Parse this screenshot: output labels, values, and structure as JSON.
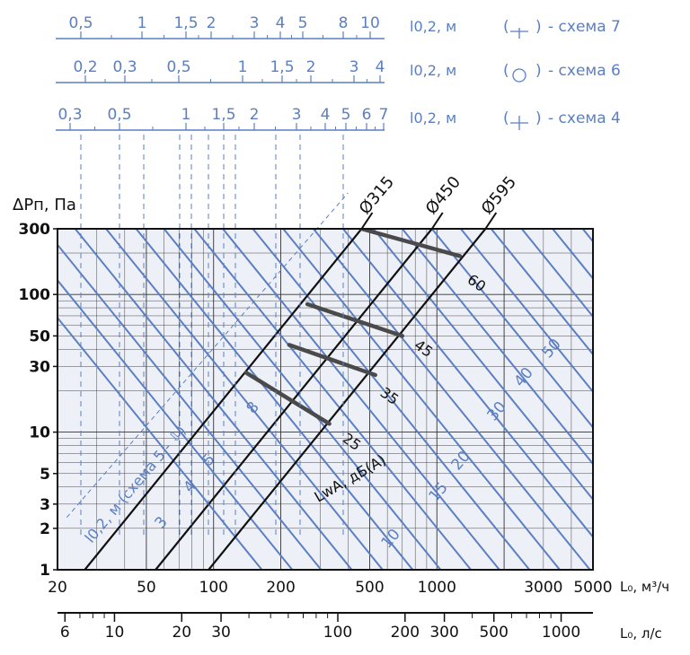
{
  "chart_data": {
    "type": "line",
    "title": "",
    "colors": {
      "blue": "#5b7fc2",
      "black": "#111111",
      "plot_bg": "#eef0f8",
      "grid": "#333333"
    },
    "x_axis_top": {
      "label": "L₀, м³/ч",
      "scale": "log",
      "range": [
        20,
        5000
      ],
      "ticks": [
        20,
        50,
        100,
        200,
        500,
        1000,
        3000,
        5000
      ],
      "tick_labels": [
        "20",
        "50",
        "100",
        "200",
        "500",
        "1000",
        "3000",
        "5000"
      ]
    },
    "x_axis_bottom": {
      "label": "L₀, л/с",
      "scale": "log",
      "ticks": [
        6,
        10,
        20,
        30,
        100,
        200,
        300,
        500,
        1000
      ],
      "tick_labels": [
        "6",
        "10",
        "20",
        "30",
        "100",
        "200",
        "300",
        "500",
        "1000"
      ]
    },
    "y_axis": {
      "label": "ΔPп, Па",
      "scale": "log",
      "range": [
        1,
        300
      ],
      "ticks": [
        1,
        2,
        3,
        5,
        10,
        30,
        50,
        100,
        300
      ],
      "tick_labels": [
        "1",
        "2",
        "3",
        "5",
        "10",
        "30",
        "50",
        "100",
        "300"
      ]
    },
    "grid": true,
    "diameter_lines": [
      {
        "label": "Ø315",
        "points": [
          [
            26.5,
            1
          ],
          [
            460,
            300
          ]
        ]
      },
      {
        "label": "Ø450",
        "points": [
          [
            55,
            1
          ],
          [
            950,
            300
          ]
        ]
      },
      {
        "label": "Ø595",
        "points": [
          [
            95,
            1
          ],
          [
            1650,
            300
          ]
        ]
      }
    ],
    "noise_lines": {
      "label": "LwA, дБ(А)",
      "series": [
        {
          "name": "25",
          "points": [
            [
              140,
              27
            ],
            [
              330,
              11.5
            ]
          ]
        },
        {
          "name": "35",
          "points": [
            [
              218,
              43
            ],
            [
              530,
              26
            ]
          ]
        },
        {
          "name": "45",
          "points": [
            [
              263,
              85
            ],
            [
              700,
              50
            ]
          ]
        },
        {
          "name": "60",
          "points": [
            [
              460,
              300
            ],
            [
              1270,
              190
            ]
          ]
        }
      ]
    },
    "throw_lines": {
      "label": "l0,2, м (схема 5 - ⇩)",
      "values": [
        "3",
        "4",
        "5",
        "8",
        "10",
        "15",
        "20",
        "30",
        "40",
        "50"
      ]
    },
    "throw_scales": [
      {
        "label": "l0,2, м",
        "scheme": "схема 7",
        "tick_labels": [
          "0,5",
          "1",
          "1,5",
          "2",
          "3",
          "4",
          "5",
          "8",
          "10"
        ]
      },
      {
        "label": "l0,2, м",
        "scheme": "схема 6",
        "tick_labels": [
          "0,2",
          "0,3",
          "0,5",
          "1",
          "1,5",
          "2",
          "3",
          "4"
        ]
      },
      {
        "label": "l0,2, м",
        "scheme": "схема 4",
        "tick_labels": [
          "0,3",
          "0,5",
          "1",
          "1,5",
          "2",
          "3",
          "4",
          "5",
          "6",
          "7"
        ]
      }
    ]
  }
}
